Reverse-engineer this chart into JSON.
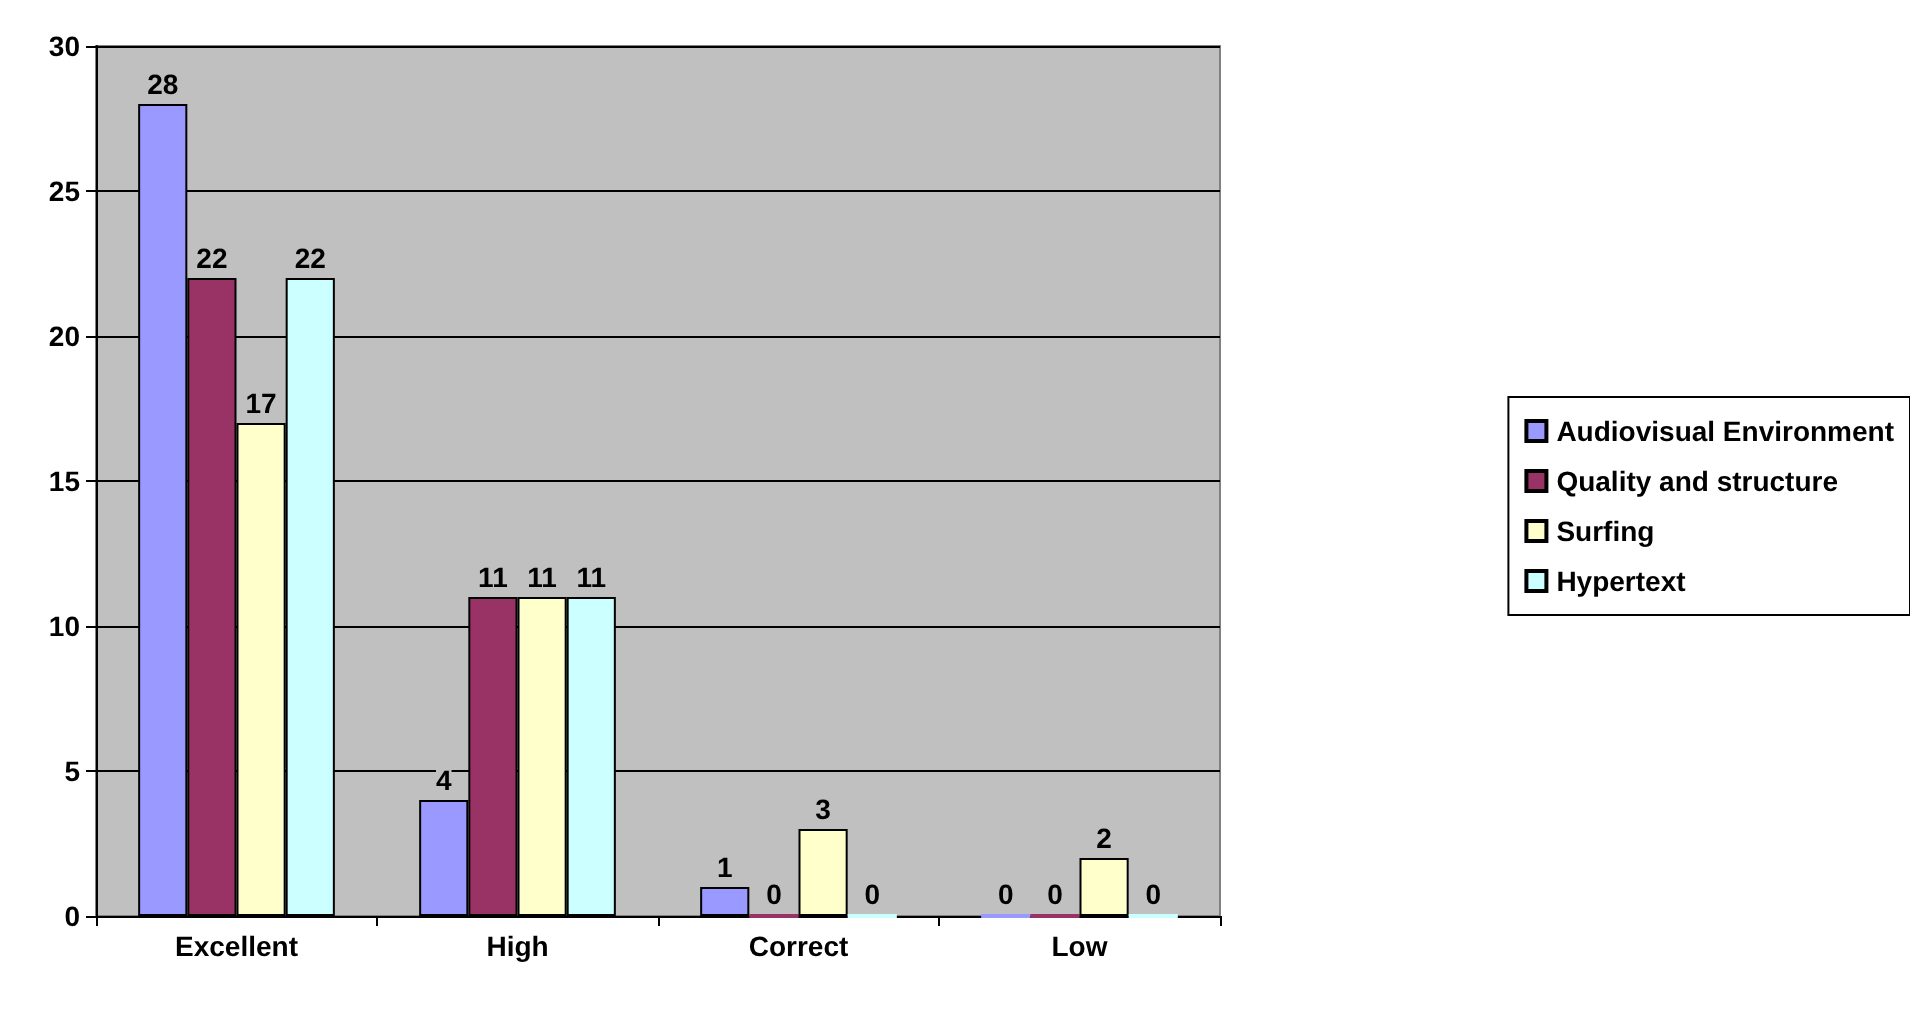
{
  "chart_data": {
    "type": "bar",
    "categories": [
      "Excellent",
      "High",
      "Correct",
      "Low"
    ],
    "series": [
      {
        "name": "Audiovisual Environment",
        "color": "#9999ff",
        "values": [
          28,
          4,
          1,
          0
        ]
      },
      {
        "name": "Quality and structure",
        "color": "#993366",
        "values": [
          22,
          11,
          0,
          0
        ]
      },
      {
        "name": "Surfing",
        "color": "#ffffcc",
        "values": [
          17,
          11,
          3,
          2
        ]
      },
      {
        "name": "Hypertext",
        "color": "#ccffff",
        "values": [
          22,
          11,
          0,
          0
        ]
      }
    ],
    "ylim": [
      0,
      30
    ],
    "yticks": [
      0,
      5,
      10,
      15,
      20,
      25,
      30
    ],
    "grid": "y",
    "legend": "right",
    "data_labels": true
  }
}
